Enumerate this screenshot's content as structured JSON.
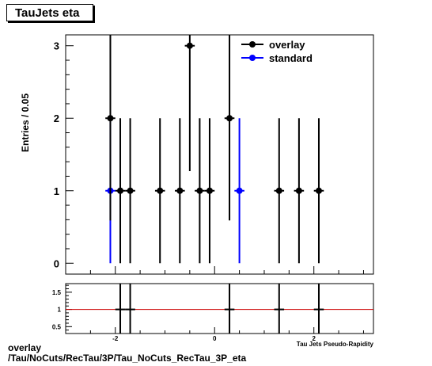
{
  "title": "TauJets eta",
  "footer": {
    "line1": "overlay",
    "line2": "/Tau/NoCuts/RecTau/3P/Tau_NoCuts_RecTau_3P_eta"
  },
  "chart_data": [
    {
      "type": "scatter",
      "ylabel": "Entries / 0.05",
      "xlim": [
        -3,
        3.2
      ],
      "ylim": [
        -0.15,
        3.15
      ],
      "y_ticks": [
        0,
        1,
        2,
        3
      ],
      "legend_position": "top-right",
      "series": [
        {
          "name": "overlay",
          "color": "#000000",
          "points": [
            {
              "x": -2.1,
              "y": 2,
              "err": 1.41
            },
            {
              "x": -1.9,
              "y": 1,
              "err": 1.0
            },
            {
              "x": -1.7,
              "y": 1,
              "err": 1.0
            },
            {
              "x": -1.1,
              "y": 1,
              "err": 1.0
            },
            {
              "x": -0.7,
              "y": 1,
              "err": 1.0
            },
            {
              "x": -0.5,
              "y": 3,
              "err": 1.73
            },
            {
              "x": -0.3,
              "y": 1,
              "err": 1.0
            },
            {
              "x": -0.1,
              "y": 1,
              "err": 1.0
            },
            {
              "x": 0.3,
              "y": 2,
              "err": 1.41
            },
            {
              "x": 1.3,
              "y": 1,
              "err": 1.0
            },
            {
              "x": 1.7,
              "y": 1,
              "err": 1.0
            },
            {
              "x": 2.1,
              "y": 1,
              "err": 1.0
            }
          ]
        },
        {
          "name": "standard",
          "color": "#0000ff",
          "points": [
            {
              "x": -2.1,
              "y": 1,
              "err": 1.0
            },
            {
              "x": 0.5,
              "y": 1,
              "err": 1.0
            }
          ]
        }
      ]
    },
    {
      "type": "scatter",
      "xlabel": "Tau Jets Pseudo-Rapidity",
      "xlim": [
        -3,
        3.2
      ],
      "ylim": [
        0.3,
        1.75
      ],
      "y_ticks": [
        0.5,
        1,
        1.5
      ],
      "x_ticks": [
        -2,
        0,
        2
      ],
      "reference_line": 1,
      "reference_color": "#cc0000",
      "points": [
        {
          "x": -1.9,
          "y": 1,
          "err": 1.0
        },
        {
          "x": -1.7,
          "y": 1,
          "err": 1.0
        },
        {
          "x": 0.3,
          "y": 1,
          "err": 1.0
        },
        {
          "x": 1.3,
          "y": 1,
          "err": 1.0
        },
        {
          "x": 2.1,
          "y": 1,
          "err": 1.0
        }
      ]
    }
  ]
}
